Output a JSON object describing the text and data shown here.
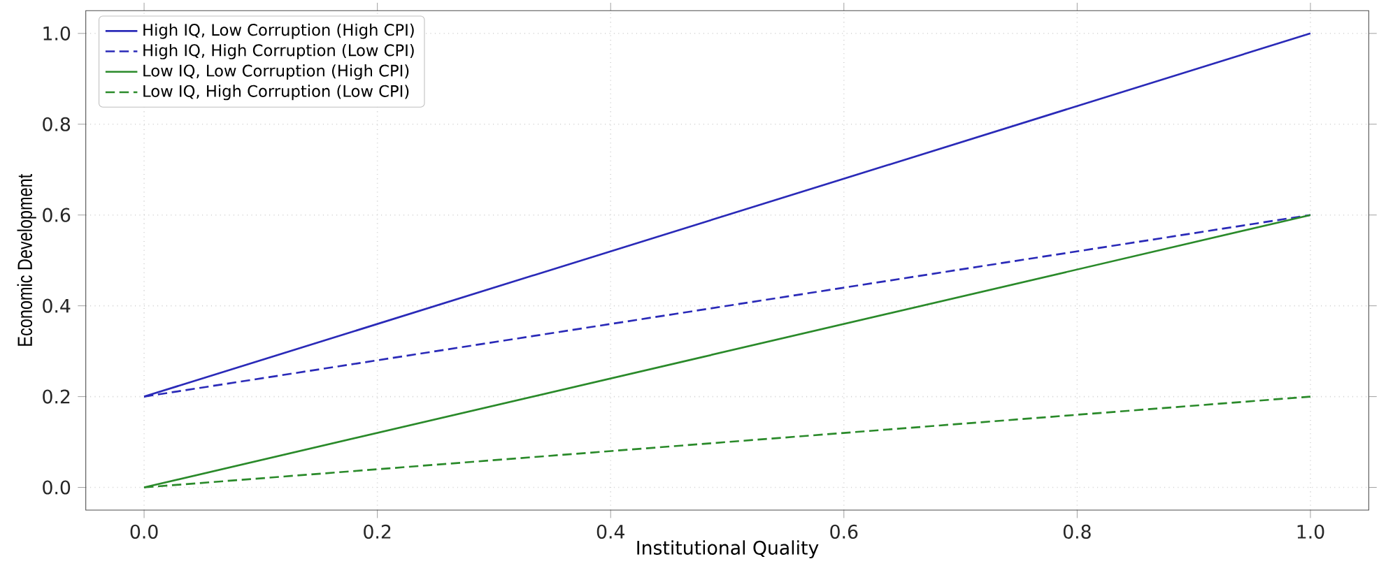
{
  "chart_data": {
    "type": "line",
    "xlabel": "Institutional Quality",
    "ylabel": "Economic Development",
    "x": [
      0.0,
      1.0
    ],
    "series": [
      {
        "name": "High IQ, Low Corruption (High CPI)",
        "color": "#2a2ab8",
        "line_style": "solid",
        "values": [
          0.2,
          1.0
        ]
      },
      {
        "name": "High IQ, High Corruption (Low CPI)",
        "color": "#2a2ab8",
        "line_style": "dashed",
        "values": [
          0.2,
          0.6
        ]
      },
      {
        "name": "Low IQ, Low Corruption (High CPI)",
        "color": "#2a8a2a",
        "line_style": "solid",
        "values": [
          0.0,
          0.6
        ]
      },
      {
        "name": "Low IQ, High Corruption (Low CPI)",
        "color": "#2a8a2a",
        "line_style": "dashed",
        "values": [
          0.0,
          0.2
        ]
      }
    ],
    "xlim": [
      -0.05,
      1.05
    ],
    "ylim": [
      -0.05,
      1.05
    ],
    "xticks": [
      {
        "value": 0.0,
        "label": "0.0"
      },
      {
        "value": 0.2,
        "label": "0.2"
      },
      {
        "value": 0.4,
        "label": "0.4"
      },
      {
        "value": 0.6,
        "label": "0.6"
      },
      {
        "value": 0.8,
        "label": "0.8"
      },
      {
        "value": 1.0,
        "label": "1.0"
      }
    ],
    "yticks": [
      {
        "value": 0.0,
        "label": "0.0"
      },
      {
        "value": 0.2,
        "label": "0.2"
      },
      {
        "value": 0.4,
        "label": "0.4"
      },
      {
        "value": 0.6,
        "label": "0.6"
      },
      {
        "value": 0.8,
        "label": "0.8"
      },
      {
        "value": 1.0,
        "label": "1.0"
      }
    ],
    "grid": true,
    "legend": "top left",
    "marker": "none"
  }
}
